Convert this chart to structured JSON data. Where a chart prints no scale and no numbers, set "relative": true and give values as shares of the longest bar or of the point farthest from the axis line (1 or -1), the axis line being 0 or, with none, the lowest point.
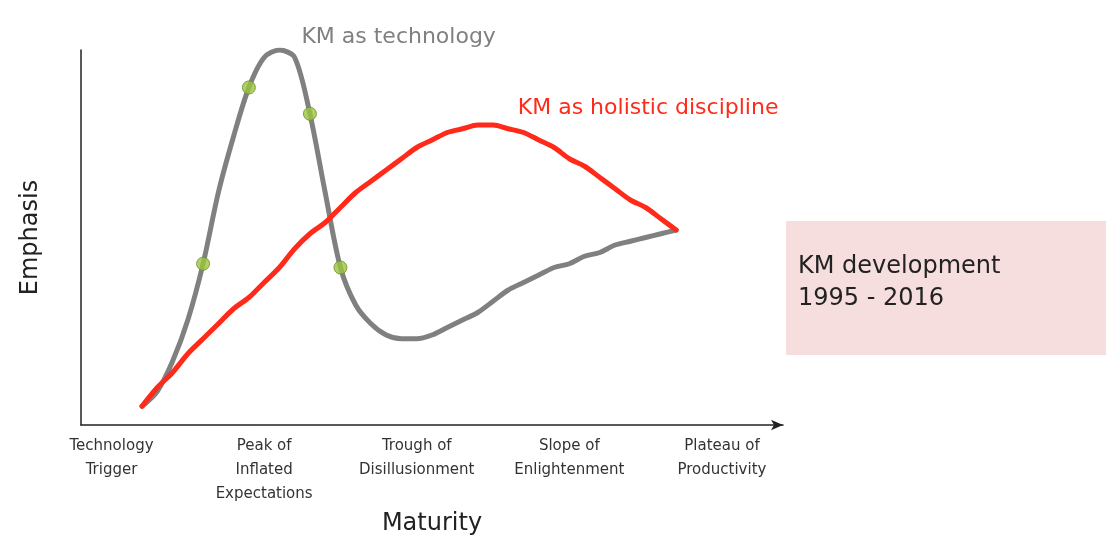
{
  "chart_data": {
    "type": "line",
    "relative": true,
    "xlabel": "Maturity",
    "ylabel": "Emphasis",
    "categories": [
      null,
      null,
      "Technology\nTrigger",
      null,
      null,
      null,
      null,
      null,
      null,
      null,
      null,
      null,
      "Peak of\nInflated\nExpectations",
      null,
      null,
      null,
      null,
      null,
      null,
      null,
      null,
      null,
      "Trough of\nDisillusionment",
      null,
      null,
      null,
      null,
      null,
      null,
      null,
      null,
      null,
      "Slope of\nEnlightenment",
      null,
      null,
      null,
      null,
      null,
      null,
      null,
      null,
      null,
      "Plateau of\nProductivity",
      null,
      null,
      null,
      null
    ],
    "legend": false,
    "grid": false,
    "marker": "none",
    "line_style": "solid",
    "annotations": [
      "KM development\n1995 - 2016"
    ],
    "series": [
      {
        "name": "KM as technology",
        "color": "#808080",
        "values": [
          null,
          null,
          null,
          null,
          0.05,
          0.09,
          0.17,
          0.28,
          0.43,
          0.62,
          0.77,
          0.9,
          0.98,
          1,
          0.98,
          0.83,
          0.62,
          0.42,
          0.32,
          0.27,
          0.24,
          0.23,
          0.23,
          0.24,
          0.26,
          0.28,
          0.3,
          0.33,
          0.36,
          0.38,
          0.4,
          0.42,
          0.43,
          0.45,
          0.46,
          0.48,
          0.49,
          0.5,
          0.51,
          0.52,
          null,
          null,
          null,
          null,
          null,
          null,
          null
        ]
      },
      {
        "name": "KM as holistic discipline",
        "color": "#ff2a1a",
        "values": [
          null,
          null,
          null,
          null,
          0.05,
          0.1,
          0.14,
          0.19,
          0.23,
          0.27,
          0.31,
          0.34,
          0.38,
          0.42,
          0.47,
          0.51,
          0.54,
          0.58,
          0.62,
          0.65,
          0.68,
          0.71,
          0.74,
          0.76,
          0.78,
          0.79,
          0.8,
          0.8,
          0.79,
          0.78,
          0.76,
          0.74,
          0.71,
          0.69,
          0.66,
          0.63,
          0.6,
          0.58,
          0.55,
          0.52,
          null,
          null,
          null,
          null,
          null,
          null,
          null
        ]
      },
      {
        "type": "scatter",
        "marker": "circle",
        "color": "#9bc53d",
        "values": [
          null,
          null,
          null,
          null,
          null,
          null,
          null,
          null,
          0.43,
          null,
          null,
          0.9,
          null,
          null,
          null,
          0.83,
          null,
          0.42,
          null,
          null,
          null,
          null,
          null,
          null,
          null,
          null,
          null,
          null,
          null,
          null,
          null,
          null,
          null,
          null,
          null,
          null,
          null,
          null,
          null,
          null,
          null,
          null,
          null,
          null,
          null,
          null,
          null
        ]
      }
    ]
  }
}
